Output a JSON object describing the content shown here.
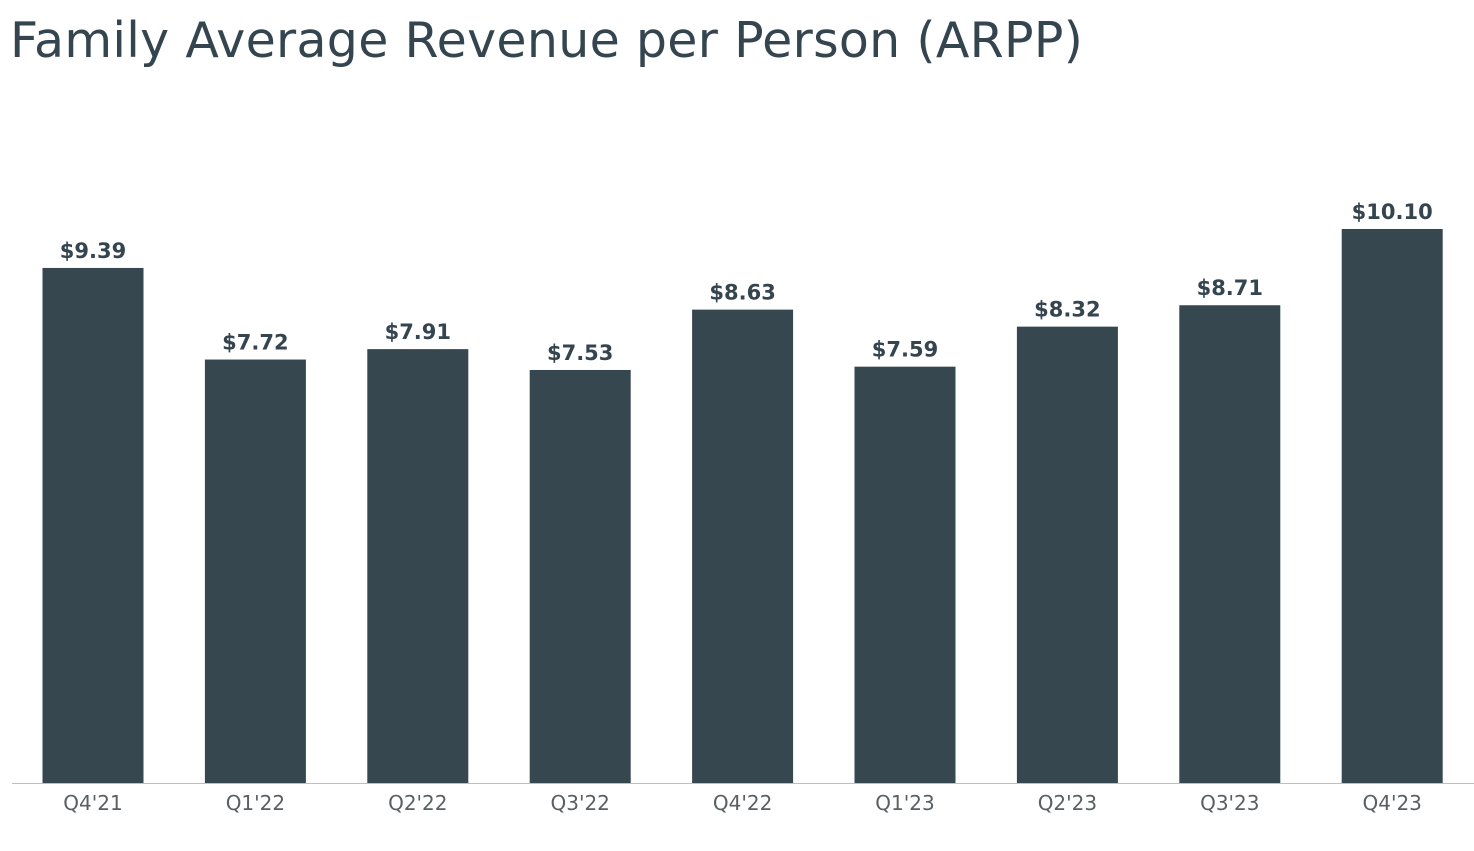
{
  "chart_data": {
    "type": "bar",
    "title": "Family Average Revenue per Person (ARPP)",
    "xlabel": "",
    "ylabel": "",
    "categories": [
      "Q4'21",
      "Q1'22",
      "Q2'22",
      "Q3'22",
      "Q4'22",
      "Q1'23",
      "Q2'23",
      "Q3'23",
      "Q4'23"
    ],
    "values": [
      9.39,
      7.72,
      7.91,
      7.53,
      8.63,
      7.59,
      8.32,
      8.71,
      10.1
    ],
    "data_labels": [
      "$9.39",
      "$7.72",
      "$7.91",
      "$7.53",
      "$8.63",
      "$7.59",
      "$8.32",
      "$8.71",
      "$10.10"
    ],
    "ylim": [
      0,
      10.1
    ],
    "grid": false,
    "legend": "none",
    "colors": {
      "bar": "#36474f",
      "title": "#34454f",
      "axis": "#bfbfbf",
      "category_text": "#5a5f63"
    }
  }
}
